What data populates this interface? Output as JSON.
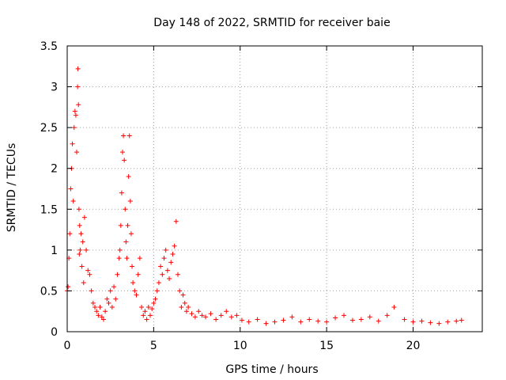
{
  "chart_data": {
    "type": "scatter",
    "title": "Day 148 of 2022, SRMTID for receiver baie",
    "xlabel": "GPS time / hours",
    "ylabel": "SRMTID / TECUs",
    "xlim": [
      0,
      24
    ],
    "ylim": [
      0,
      3.5
    ],
    "xticks": [
      0,
      5,
      10,
      15,
      20
    ],
    "xtick_labels": [
      "0",
      "5",
      "10",
      "15",
      "20"
    ],
    "yticks": [
      0,
      0.5,
      1,
      1.5,
      2,
      2.5,
      3,
      3.5
    ],
    "ytick_labels": [
      "0",
      "0.5",
      "1",
      "1.5",
      "2",
      "2.5",
      "3",
      "3.5"
    ],
    "grid": true,
    "marker": "+",
    "series": [
      {
        "name": "SRMTID",
        "color": "#ff0000",
        "x": [
          0.0,
          0.05,
          0.1,
          0.15,
          0.2,
          0.25,
          0.3,
          0.35,
          0.4,
          0.45,
          0.5,
          0.55,
          0.6,
          0.62,
          0.65,
          0.68,
          0.7,
          0.72,
          0.75,
          0.8,
          0.85,
          0.9,
          0.95,
          1.0,
          1.1,
          1.2,
          1.3,
          1.4,
          1.5,
          1.6,
          1.7,
          1.8,
          1.9,
          2.0,
          2.1,
          2.2,
          2.3,
          2.4,
          2.5,
          2.6,
          2.7,
          2.8,
          2.9,
          3.0,
          3.05,
          3.1,
          3.15,
          3.2,
          3.25,
          3.3,
          3.35,
          3.4,
          3.45,
          3.5,
          3.55,
          3.6,
          3.65,
          3.7,
          3.75,
          3.8,
          3.9,
          4.0,
          4.1,
          4.2,
          4.3,
          4.4,
          4.5,
          4.6,
          4.7,
          4.8,
          4.9,
          5.0,
          5.1,
          5.2,
          5.3,
          5.4,
          5.5,
          5.6,
          5.7,
          5.8,
          5.9,
          6.0,
          6.1,
          6.2,
          6.3,
          6.4,
          6.5,
          6.6,
          6.7,
          6.8,
          6.9,
          7.0,
          7.2,
          7.4,
          7.6,
          7.8,
          8.0,
          8.3,
          8.6,
          8.9,
          9.2,
          9.5,
          9.8,
          10.1,
          10.5,
          11.0,
          11.5,
          12.0,
          12.5,
          13.0,
          13.5,
          14.0,
          14.5,
          15.0,
          15.5,
          16.0,
          16.5,
          17.0,
          17.5,
          18.0,
          18.5,
          18.9,
          19.5,
          20.0,
          20.5,
          21.0,
          21.5,
          22.0,
          22.5,
          22.8
        ],
        "y": [
          0.5,
          0.55,
          0.9,
          1.2,
          1.75,
          2.0,
          2.3,
          1.6,
          2.5,
          2.7,
          2.65,
          2.2,
          3.0,
          3.22,
          2.78,
          1.5,
          0.95,
          1.3,
          1.0,
          1.2,
          0.8,
          1.1,
          0.6,
          1.4,
          1.0,
          0.75,
          0.7,
          0.5,
          0.35,
          0.3,
          0.25,
          0.2,
          0.3,
          0.18,
          0.15,
          0.25,
          0.4,
          0.35,
          0.5,
          0.3,
          0.55,
          0.4,
          0.7,
          0.9,
          1.0,
          1.3,
          1.7,
          2.2,
          2.4,
          2.1,
          1.5,
          1.1,
          0.9,
          1.3,
          1.9,
          2.4,
          1.6,
          1.2,
          0.8,
          0.6,
          0.5,
          0.45,
          0.7,
          0.9,
          0.3,
          0.2,
          0.25,
          0.15,
          0.3,
          0.2,
          0.28,
          0.35,
          0.4,
          0.5,
          0.6,
          0.8,
          0.7,
          0.9,
          1.0,
          0.75,
          0.65,
          0.85,
          0.95,
          1.05,
          1.35,
          0.7,
          0.5,
          0.3,
          0.45,
          0.35,
          0.25,
          0.3,
          0.22,
          0.18,
          0.25,
          0.2,
          0.18,
          0.22,
          0.15,
          0.2,
          0.25,
          0.18,
          0.2,
          0.14,
          0.12,
          0.15,
          0.1,
          0.12,
          0.14,
          0.18,
          0.12,
          0.15,
          0.13,
          0.12,
          0.17,
          0.2,
          0.14,
          0.15,
          0.18,
          0.13,
          0.2,
          0.3,
          0.15,
          0.12,
          0.13,
          0.11,
          0.1,
          0.12,
          0.13,
          0.14
        ]
      }
    ]
  }
}
